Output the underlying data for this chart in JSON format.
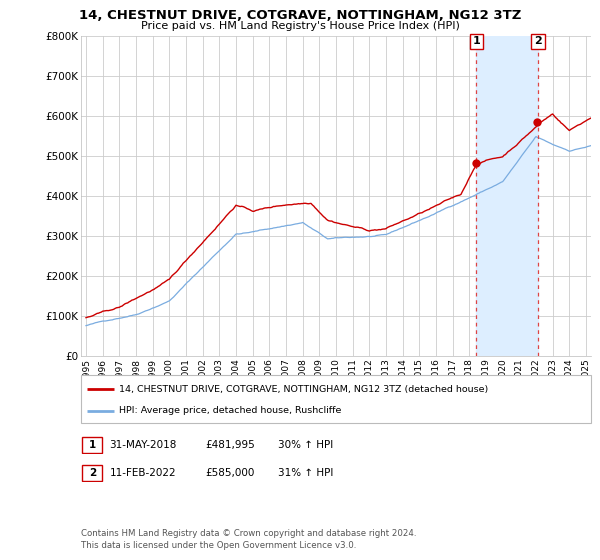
{
  "title": "14, CHESTNUT DRIVE, COTGRAVE, NOTTINGHAM, NG12 3TZ",
  "subtitle": "Price paid vs. HM Land Registry's House Price Index (HPI)",
  "red_line_label": "14, CHESTNUT DRIVE, COTGRAVE, NOTTINGHAM, NG12 3TZ (detached house)",
  "blue_line_label": "HPI: Average price, detached house, Rushcliffe",
  "footer": "Contains HM Land Registry data © Crown copyright and database right 2024.\nThis data is licensed under the Open Government Licence v3.0.",
  "sale1": {
    "date_str": "31-MAY-2018",
    "price": 481995,
    "hpi_change": "30% ↑ HPI",
    "year": 2018.42
  },
  "sale2": {
    "date_str": "11-FEB-2022",
    "price": 585000,
    "hpi_change": "31% ↑ HPI",
    "year": 2022.12
  },
  "red_color": "#cc0000",
  "blue_color": "#7aace0",
  "shade_color": "#ddeeff",
  "dashed_color": "#dd4444",
  "background_color": "#ffffff",
  "grid_color": "#cccccc",
  "ylim": [
    0,
    800000
  ],
  "yticks": [
    0,
    100000,
    200000,
    300000,
    400000,
    500000,
    600000,
    700000,
    800000
  ],
  "ytick_labels": [
    "£0",
    "£100K",
    "£200K",
    "£300K",
    "£400K",
    "£500K",
    "£600K",
    "£700K",
    "£800K"
  ],
  "xlim_start": 1994.7,
  "xlim_end": 2025.3
}
